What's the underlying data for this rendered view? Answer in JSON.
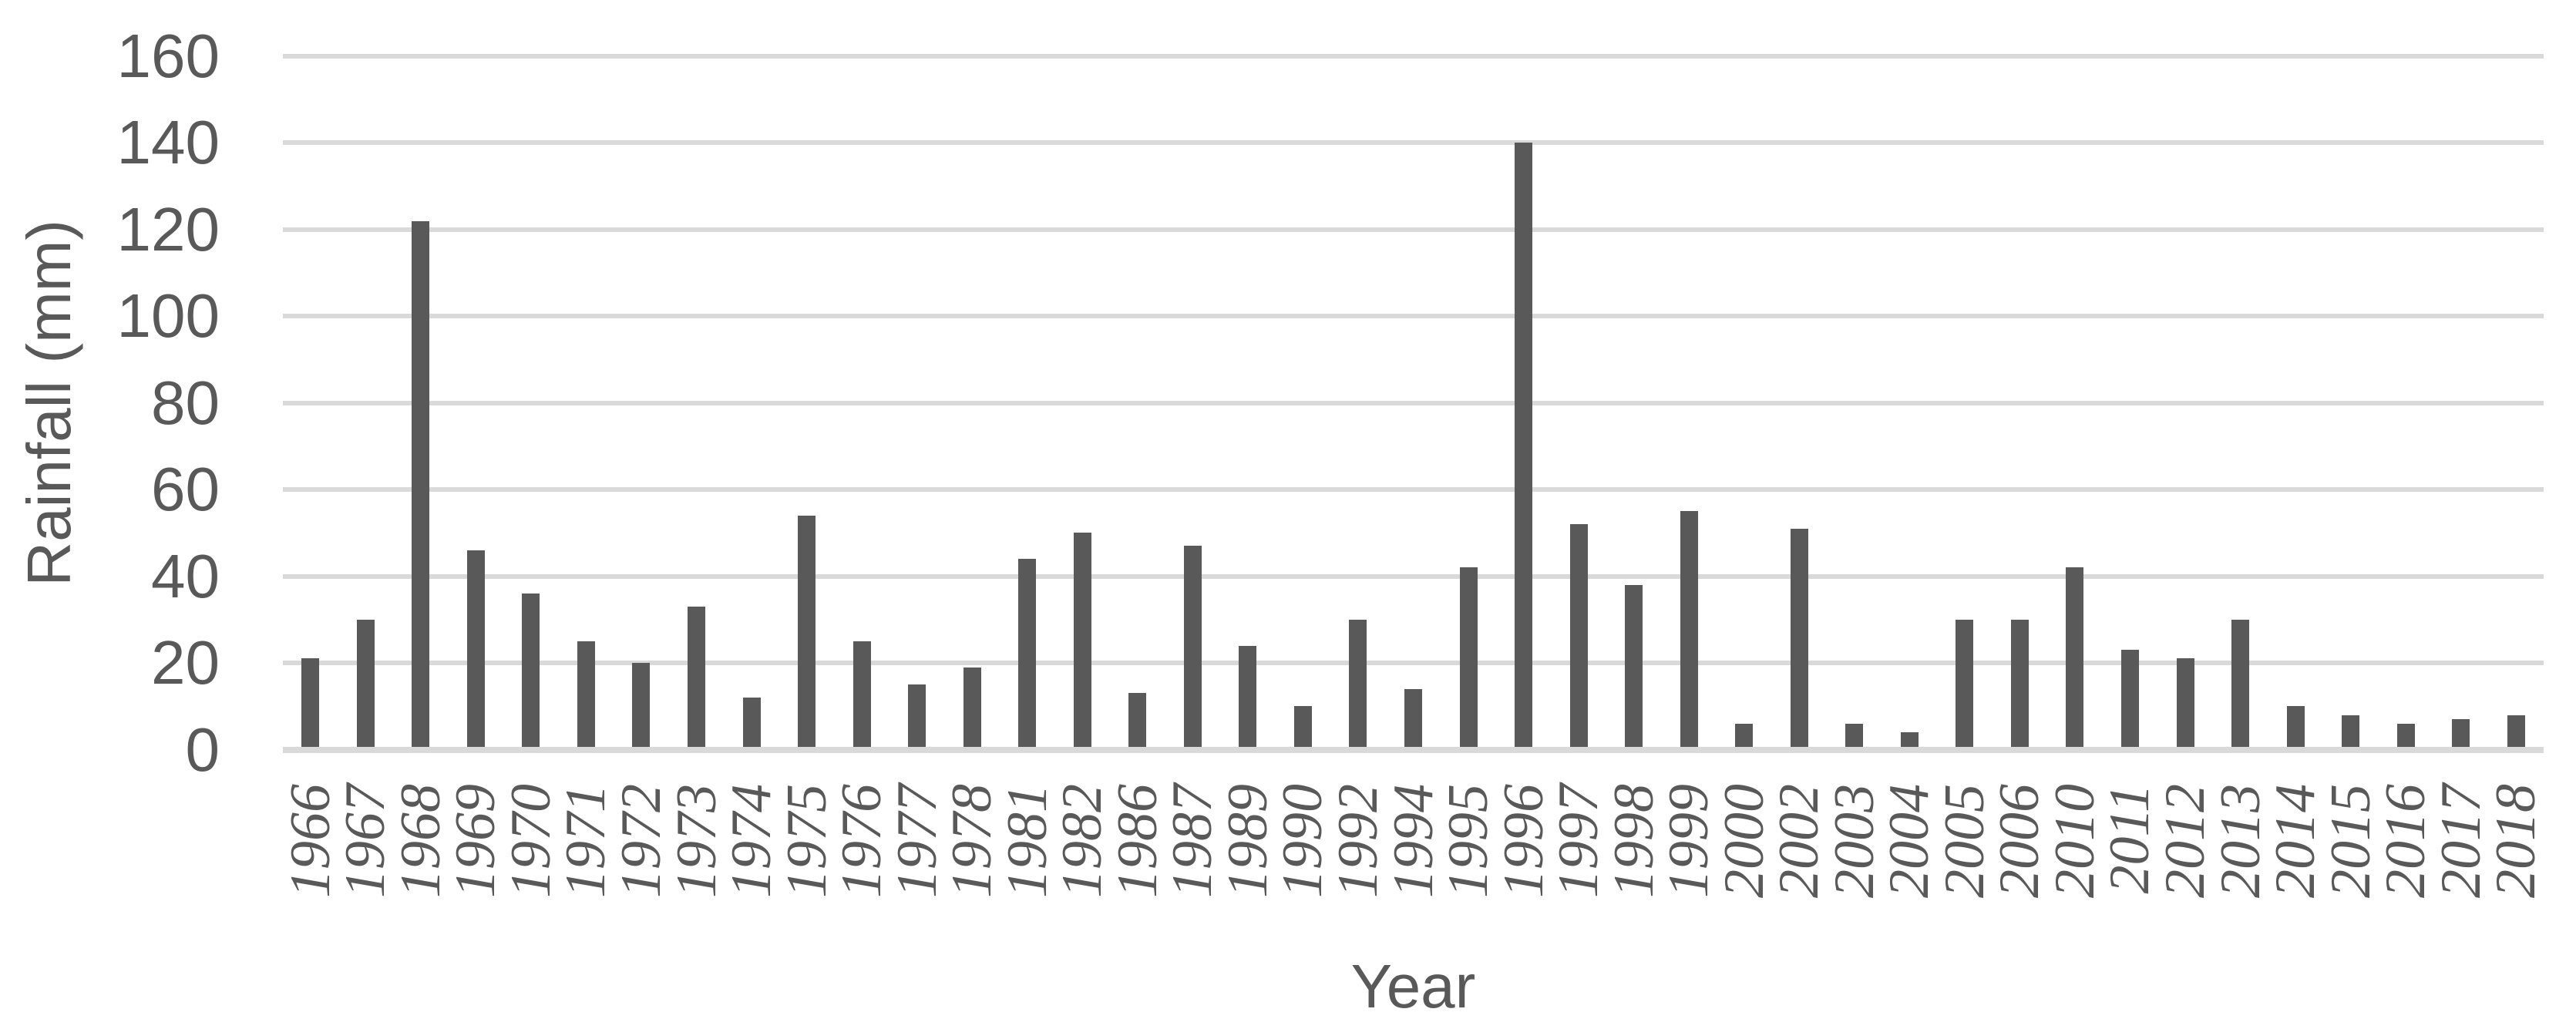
{
  "chart_data": {
    "type": "bar",
    "title": "",
    "xlabel": "Year",
    "ylabel": "Rainfall (mm)",
    "categories": [
      "1966",
      "1967",
      "1968",
      "1969",
      "1970",
      "1971",
      "1972",
      "1973",
      "1974",
      "1975",
      "1976",
      "1977",
      "1978",
      "1981",
      "1982",
      "1986",
      "1987",
      "1989",
      "1990",
      "1992",
      "1994",
      "1995",
      "1996",
      "1997",
      "1998",
      "1999",
      "2000",
      "2002",
      "2003",
      "2004",
      "2005",
      "2006",
      "2010",
      "2011",
      "2012",
      "2013",
      "2014",
      "2015",
      "2016",
      "2017",
      "2018"
    ],
    "values": [
      21,
      30,
      122,
      46,
      36,
      25,
      20,
      33,
      12,
      54,
      25,
      15,
      19,
      44,
      50,
      13,
      47,
      24,
      10,
      30,
      14,
      42,
      140,
      52,
      38,
      55,
      6,
      51,
      6,
      4,
      30,
      30,
      42,
      23,
      21,
      30,
      10,
      8,
      6,
      7,
      8
    ],
    "ylim": [
      0,
      160
    ],
    "yticks": [
      0,
      20,
      40,
      60,
      80,
      100,
      120,
      140,
      160
    ],
    "grid": "horizontal",
    "legend": "none",
    "colors": {
      "bar": "#595959",
      "gridline": "#d9d9d9",
      "axis_line": "#d9d9d9",
      "text": "#595959"
    }
  }
}
